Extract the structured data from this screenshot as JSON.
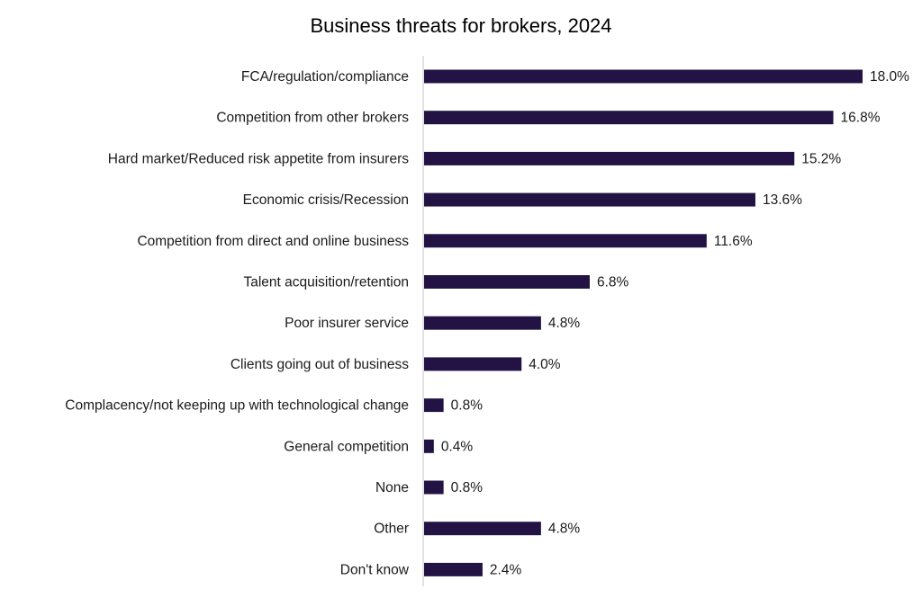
{
  "chart_data": {
    "type": "bar",
    "orientation": "horizontal",
    "title": "Business threats for brokers, 2024",
    "xlabel": "",
    "ylabel": "",
    "xlim": [
      0,
      18
    ],
    "grid": false,
    "bar_color": "#231344",
    "categories": [
      "FCA/regulation/compliance",
      "Competition from other brokers",
      "Hard market/Reduced risk appetite from insurers",
      "Economic crisis/Recession",
      "Competition from direct and online business",
      "Talent acquisition/retention",
      "Poor insurer service",
      "Clients going out of business",
      "Complacency/not keeping up with technological change",
      "General competition",
      "None",
      "Other",
      "Don't know"
    ],
    "values": [
      18.0,
      16.8,
      15.2,
      13.6,
      11.6,
      6.8,
      4.8,
      4.0,
      0.8,
      0.4,
      0.8,
      4.8,
      2.4
    ],
    "labels": [
      "18.0%",
      "16.8%",
      "15.2%",
      "13.6%",
      "11.6%",
      "6.8%",
      "4.8%",
      "4.0%",
      "0.8%",
      "0.4%",
      "0.8%",
      "4.8%",
      "2.4%"
    ]
  }
}
